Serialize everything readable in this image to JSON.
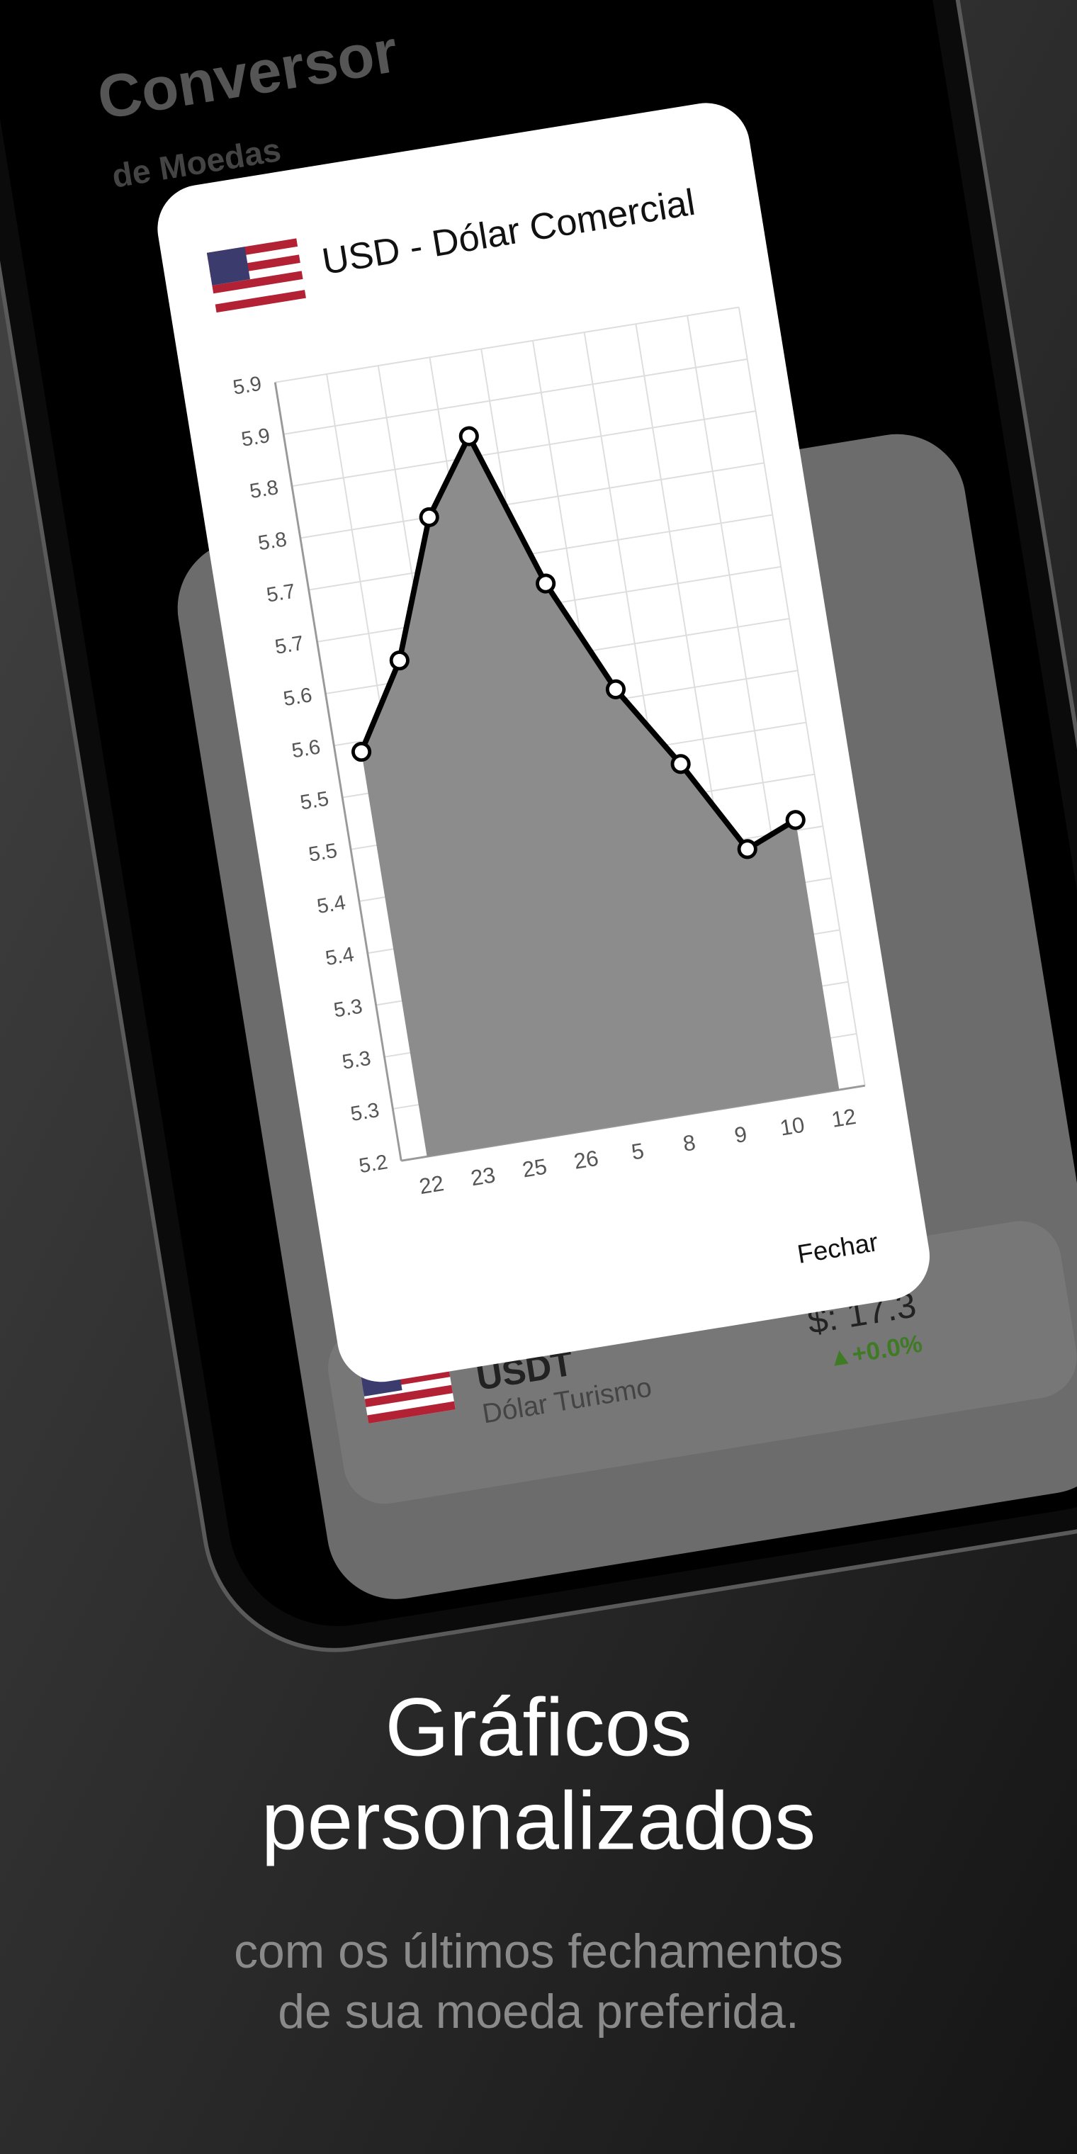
{
  "app": {
    "title": "Conversor",
    "subtitle": "de Moedas",
    "dialog_close": "Fechar",
    "list_item": {
      "code": "USDT",
      "name": "Dólar Turismo",
      "price": "$: 17.3",
      "change": "▲+0.0%"
    }
  },
  "chart_data": {
    "type": "line",
    "title": "USD - Dólar Comercial",
    "categories": [
      "22",
      "23",
      "25",
      "26",
      "5",
      "8",
      "9",
      "10",
      "12"
    ],
    "values": [
      5.59,
      5.67,
      5.8,
      5.87,
      5.72,
      5.61,
      5.53,
      5.44,
      5.46
    ],
    "color": "#000000",
    "fill": "#8c8c8c",
    "grid": true,
    "ylim": [
      5.2,
      5.95
    ],
    "yticks": [
      5.2,
      {
        "value": 5.25,
        "label": "5.3"
      },
      {
        "value": 5.3,
        "label": "5.3"
      },
      {
        "value": 5.35,
        "label": "5.3"
      },
      {
        "value": 5.4,
        "label": "5.4"
      },
      {
        "value": 5.45,
        "label": "5.4"
      },
      {
        "value": 5.5,
        "label": "5.5"
      },
      {
        "value": 5.55,
        "label": "5.5"
      },
      {
        "value": 5.6,
        "label": "5.6"
      },
      {
        "value": 5.65,
        "label": "5.6"
      },
      {
        "value": 5.7,
        "label": "5.7"
      },
      {
        "value": 5.75,
        "label": "5.7"
      },
      {
        "value": 5.8,
        "label": "5.8"
      },
      {
        "value": 5.85,
        "label": "5.8"
      },
      {
        "value": 5.9,
        "label": "5.9"
      },
      {
        "value": 5.95,
        "label": "5.9"
      }
    ]
  },
  "caption": {
    "headline": [
      "Gráficos",
      "personalizados"
    ],
    "text": [
      "com os últimos fechamentos",
      "de sua moeda preferida."
    ]
  }
}
